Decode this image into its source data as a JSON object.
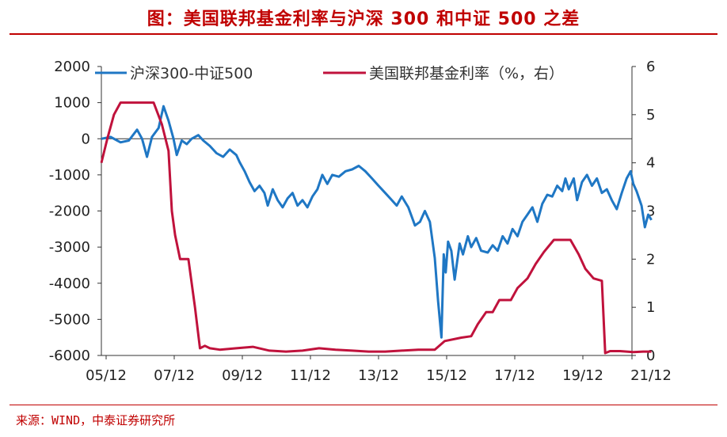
{
  "page": {
    "title": "图：美国联邦基金利率与沪深 300 和中证 500 之差",
    "source": "来源：WIND，中泰证券研究所"
  },
  "chart_data": {
    "type": "line",
    "title": "图：美国联邦基金利率与沪深 300 和中证 500 之差",
    "xlabel": "",
    "ylabel": "",
    "x_ticks": [
      "05/12",
      "07/12",
      "09/12",
      "11/12",
      "13/12",
      "15/12",
      "17/12",
      "19/12",
      "21/12"
    ],
    "x_range": [
      2005.92,
      2021.96
    ],
    "y_left": {
      "range": [
        -6000,
        2000
      ],
      "ticks": [
        -6000,
        -5000,
        -4000,
        -3000,
        -2000,
        -1000,
        0,
        1000,
        2000
      ]
    },
    "y_right": {
      "range": [
        0,
        6
      ],
      "ticks": [
        0,
        1,
        2,
        3,
        4,
        5,
        6
      ]
    },
    "legend_position": "top",
    "series": [
      {
        "name": "沪深300-中证500",
        "axis": "left",
        "color": "#1f77c4",
        "points": [
          [
            2005.92,
            0
          ],
          [
            2006.2,
            50
          ],
          [
            2006.5,
            -100
          ],
          [
            2006.75,
            -50
          ],
          [
            2007.0,
            250
          ],
          [
            2007.15,
            0
          ],
          [
            2007.3,
            -500
          ],
          [
            2007.45,
            50
          ],
          [
            2007.65,
            300
          ],
          [
            2007.8,
            900
          ],
          [
            2007.95,
            500
          ],
          [
            2008.1,
            0
          ],
          [
            2008.2,
            -450
          ],
          [
            2008.35,
            -50
          ],
          [
            2008.5,
            -150
          ],
          [
            2008.65,
            0
          ],
          [
            2008.85,
            100
          ],
          [
            2009.0,
            -50
          ],
          [
            2009.2,
            -200
          ],
          [
            2009.4,
            -400
          ],
          [
            2009.6,
            -500
          ],
          [
            2009.8,
            -300
          ],
          [
            2010.0,
            -450
          ],
          [
            2010.1,
            -650
          ],
          [
            2010.25,
            -900
          ],
          [
            2010.4,
            -1200
          ],
          [
            2010.55,
            -1450
          ],
          [
            2010.7,
            -1300
          ],
          [
            2010.85,
            -1500
          ],
          [
            2010.95,
            -1850
          ],
          [
            2011.1,
            -1400
          ],
          [
            2011.25,
            -1700
          ],
          [
            2011.4,
            -1900
          ],
          [
            2011.55,
            -1650
          ],
          [
            2011.7,
            -1500
          ],
          [
            2011.85,
            -1850
          ],
          [
            2012.0,
            -1700
          ],
          [
            2012.15,
            -1900
          ],
          [
            2012.3,
            -1600
          ],
          [
            2012.45,
            -1400
          ],
          [
            2012.6,
            -1000
          ],
          [
            2012.75,
            -1250
          ],
          [
            2012.9,
            -1000
          ],
          [
            2013.1,
            -1050
          ],
          [
            2013.3,
            -900
          ],
          [
            2013.5,
            -850
          ],
          [
            2013.7,
            -750
          ],
          [
            2013.9,
            -900
          ],
          [
            2014.1,
            -1100
          ],
          [
            2014.3,
            -1300
          ],
          [
            2014.5,
            -1500
          ],
          [
            2014.7,
            -1700
          ],
          [
            2014.85,
            -1850
          ],
          [
            2015.0,
            -1600
          ],
          [
            2015.2,
            -1900
          ],
          [
            2015.4,
            -2400
          ],
          [
            2015.55,
            -2300
          ],
          [
            2015.7,
            -2000
          ],
          [
            2015.85,
            -2300
          ],
          [
            2016.0,
            -3300
          ],
          [
            2016.1,
            -4500
          ],
          [
            2016.2,
            -5500
          ],
          [
            2016.27,
            -3200
          ],
          [
            2016.33,
            -3700
          ],
          [
            2016.4,
            -2850
          ],
          [
            2016.5,
            -3100
          ],
          [
            2016.6,
            -3900
          ],
          [
            2016.75,
            -2900
          ],
          [
            2016.85,
            -3200
          ],
          [
            2017.0,
            -2700
          ],
          [
            2017.1,
            -3000
          ],
          [
            2017.25,
            -2750
          ],
          [
            2017.4,
            -3100
          ],
          [
            2017.6,
            -3150
          ],
          [
            2017.75,
            -2950
          ],
          [
            2017.9,
            -3100
          ],
          [
            2018.05,
            -2700
          ],
          [
            2018.2,
            -2900
          ],
          [
            2018.35,
            -2500
          ],
          [
            2018.5,
            -2700
          ],
          [
            2018.65,
            -2300
          ],
          [
            2018.8,
            -2100
          ],
          [
            2018.95,
            -1900
          ],
          [
            2019.1,
            -2300
          ],
          [
            2019.25,
            -1800
          ],
          [
            2019.4,
            -1550
          ],
          [
            2019.55,
            -1600
          ],
          [
            2019.7,
            -1300
          ],
          [
            2019.85,
            -1450
          ],
          [
            2019.95,
            -1100
          ],
          [
            2020.05,
            -1400
          ],
          [
            2020.2,
            -1100
          ],
          [
            2020.3,
            -1700
          ],
          [
            2020.45,
            -1200
          ],
          [
            2020.6,
            -1000
          ],
          [
            2020.75,
            -1300
          ],
          [
            2020.9,
            -1100
          ],
          [
            2021.05,
            -1500
          ],
          [
            2021.2,
            -1400
          ],
          [
            2021.35,
            -1700
          ],
          [
            2021.5,
            -1950
          ],
          [
            2021.65,
            -1500
          ],
          [
            2021.8,
            -1100
          ],
          [
            2021.92,
            -900
          ],
          [
            2022.0,
            -1250
          ],
          [
            2022.1,
            -1450
          ],
          [
            2022.25,
            -1850
          ],
          [
            2022.35,
            -2450
          ],
          [
            2022.45,
            -2100
          ],
          [
            2022.55,
            -2250
          ]
        ]
      },
      {
        "name": "美国联邦基金利率（%，右）",
        "axis": "right",
        "color": "#c0123c",
        "points": [
          [
            2005.92,
            4.0
          ],
          [
            2006.1,
            4.5
          ],
          [
            2006.3,
            5.0
          ],
          [
            2006.5,
            5.25
          ],
          [
            2006.7,
            5.25
          ],
          [
            2007.0,
            5.25
          ],
          [
            2007.5,
            5.25
          ],
          [
            2007.75,
            4.8
          ],
          [
            2007.95,
            4.25
          ],
          [
            2008.05,
            3.0
          ],
          [
            2008.15,
            2.5
          ],
          [
            2008.3,
            2.0
          ],
          [
            2008.55,
            2.0
          ],
          [
            2008.75,
            1.0
          ],
          [
            2008.9,
            0.15
          ],
          [
            2009.05,
            0.2
          ],
          [
            2009.2,
            0.15
          ],
          [
            2009.5,
            0.12
          ],
          [
            2010.0,
            0.15
          ],
          [
            2010.5,
            0.18
          ],
          [
            2011.0,
            0.1
          ],
          [
            2011.5,
            0.08
          ],
          [
            2012.0,
            0.1
          ],
          [
            2012.5,
            0.15
          ],
          [
            2013.0,
            0.12
          ],
          [
            2013.5,
            0.1
          ],
          [
            2014.0,
            0.08
          ],
          [
            2014.5,
            0.08
          ],
          [
            2015.0,
            0.1
          ],
          [
            2015.5,
            0.12
          ],
          [
            2016.0,
            0.12
          ],
          [
            2016.3,
            0.3
          ],
          [
            2016.8,
            0.37
          ],
          [
            2017.1,
            0.4
          ],
          [
            2017.3,
            0.65
          ],
          [
            2017.55,
            0.9
          ],
          [
            2017.75,
            0.9
          ],
          [
            2017.95,
            1.15
          ],
          [
            2018.3,
            1.15
          ],
          [
            2018.5,
            1.4
          ],
          [
            2018.8,
            1.6
          ],
          [
            2019.05,
            1.9
          ],
          [
            2019.3,
            2.15
          ],
          [
            2019.6,
            2.4
          ],
          [
            2019.95,
            2.4
          ],
          [
            2020.1,
            2.4
          ],
          [
            2020.35,
            2.1
          ],
          [
            2020.55,
            1.8
          ],
          [
            2020.8,
            1.6
          ],
          [
            2021.05,
            1.55
          ],
          [
            2021.15,
            0.05
          ],
          [
            2021.3,
            0.09
          ],
          [
            2021.6,
            0.09
          ],
          [
            2022.0,
            0.07
          ],
          [
            2022.3,
            0.08
          ],
          [
            2022.55,
            0.08
          ]
        ]
      }
    ]
  }
}
